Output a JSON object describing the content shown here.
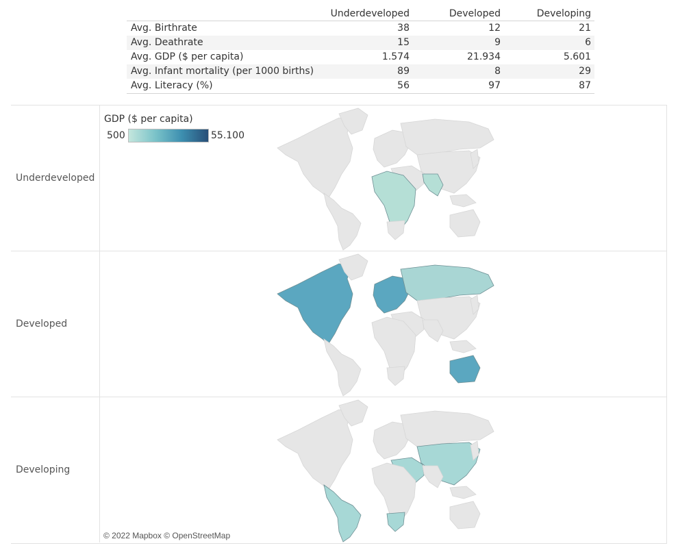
{
  "summary": {
    "columns": [
      "Underdeveloped",
      "Developed",
      "Developing"
    ],
    "rows": [
      {
        "label": "Avg. Birthrate",
        "values": [
          "38",
          "12",
          "21"
        ]
      },
      {
        "label": "Avg. Deathrate",
        "values": [
          "15",
          "9",
          "6"
        ]
      },
      {
        "label": "Avg. GDP ($ per capita)",
        "values": [
          "1.574",
          "21.934",
          "5.601"
        ]
      },
      {
        "label": "Avg. Infant mortality (per 1000 births)",
        "values": [
          "89",
          "8",
          "29"
        ]
      },
      {
        "label": "Avg. Literacy (%)",
        "values": [
          "56",
          "97",
          "87"
        ]
      }
    ]
  },
  "legend": {
    "title": "GDP ($ per capita)",
    "min": "500",
    "max": "55.100",
    "colors": [
      "#c4e6dd",
      "#7bc3c9",
      "#3d8fb0",
      "#284f78"
    ]
  },
  "rows": [
    {
      "label": "Underdeveloped",
      "fill": "#b5dfd6",
      "regions": [
        "africa",
        "south-asia"
      ]
    },
    {
      "label": "Developed",
      "fill": "#5ba7c0",
      "secondary_fill": "#a9d6d4",
      "regions": [
        "north-america",
        "europe",
        "russia",
        "australia"
      ]
    },
    {
      "label": "Developing",
      "fill": "#a7d8d6",
      "regions": [
        "latin-america",
        "middle-east",
        "asia",
        "southern-africa"
      ]
    }
  ],
  "attribution": "© 2022 Mapbox © OpenStreetMap"
}
